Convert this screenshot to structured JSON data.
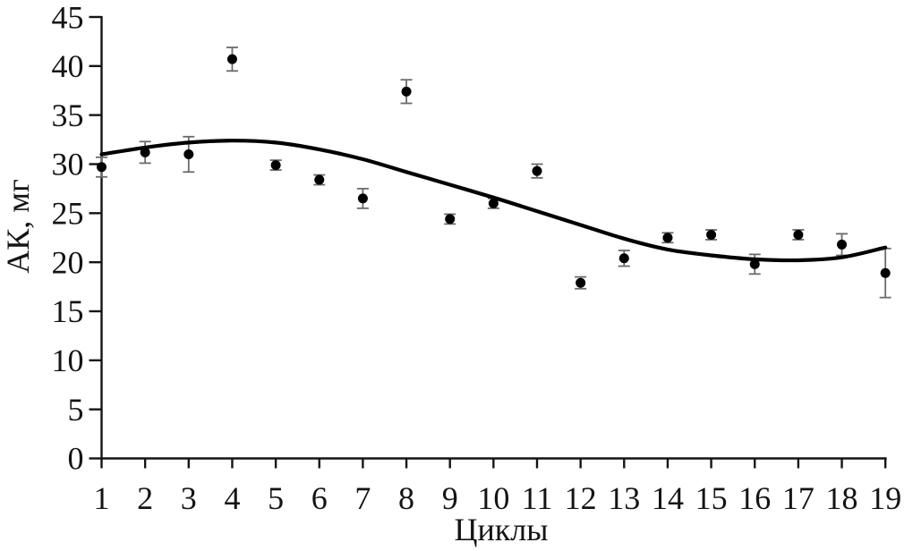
{
  "page": {
    "background_color": "#ffffff",
    "accent_color": "#000000"
  },
  "chart_data": {
    "type": "scatter",
    "title": "",
    "xlabel": "Циклы",
    "ylabel": "АК, мг",
    "xlim": [
      1,
      19
    ],
    "ylim": [
      0,
      45
    ],
    "y_tick_step": 5,
    "y_ticks": [
      0,
      5,
      10,
      15,
      20,
      25,
      30,
      35,
      40,
      45
    ],
    "x_ticks": [
      1,
      2,
      3,
      4,
      5,
      6,
      7,
      8,
      9,
      10,
      11,
      12,
      13,
      14,
      15,
      16,
      17,
      18,
      19
    ],
    "grid": false,
    "legend": "none",
    "series": [
      {
        "name": "measured-points",
        "type": "scatter",
        "marker": "filled-circle",
        "marker_color": "#000000",
        "error_bar_color": "#6b6b6b",
        "x": [
          1,
          2,
          3,
          4,
          5,
          6,
          7,
          8,
          9,
          10,
          11,
          12,
          13,
          14,
          15,
          16,
          17,
          18,
          19
        ],
        "y": [
          29.7,
          31.2,
          31.0,
          40.7,
          29.9,
          28.4,
          26.5,
          37.4,
          24.4,
          26.0,
          29.3,
          17.9,
          20.4,
          22.5,
          22.8,
          19.8,
          22.8,
          21.8,
          18.9
        ],
        "y_err": [
          1.0,
          1.1,
          1.8,
          1.2,
          0.5,
          0.5,
          1.0,
          1.2,
          0.5,
          0.5,
          0.7,
          0.6,
          0.8,
          0.5,
          0.5,
          1.0,
          0.5,
          1.1,
          2.5
        ]
      },
      {
        "name": "polynomial-trend-line",
        "type": "line",
        "line_color": "#000000",
        "x": [
          1,
          2,
          3,
          4,
          5,
          6,
          7,
          8,
          9,
          10,
          11,
          12,
          13,
          14,
          15,
          16,
          17,
          18,
          19
        ],
        "y": [
          31.0,
          31.7,
          32.2,
          32.4,
          32.2,
          31.5,
          30.5,
          29.2,
          27.9,
          26.6,
          25.2,
          23.8,
          22.4,
          21.3,
          20.7,
          20.3,
          20.2,
          20.5,
          21.5
        ]
      }
    ]
  }
}
